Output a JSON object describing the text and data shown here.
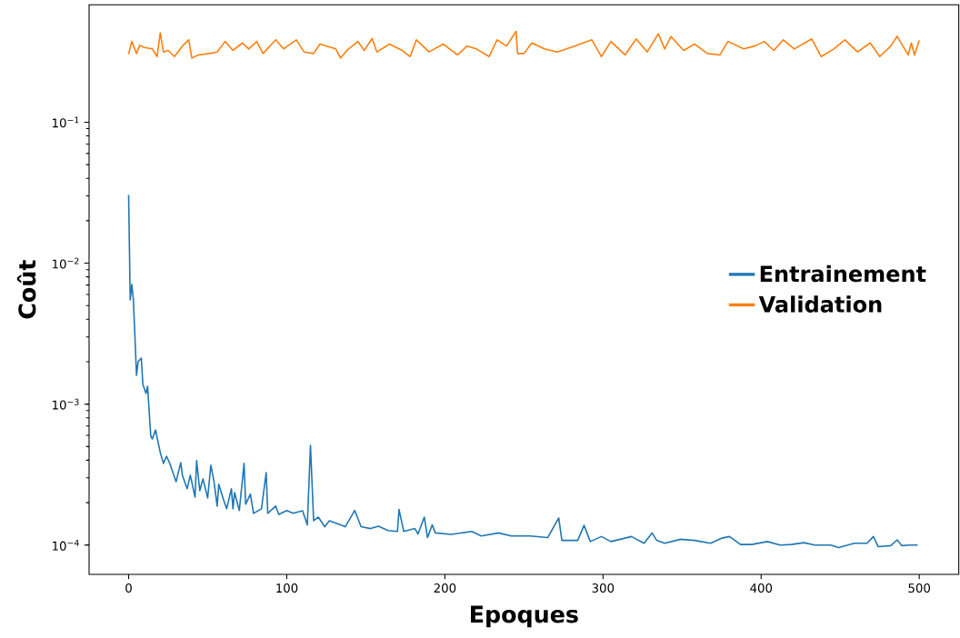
{
  "chart_data": {
    "type": "line",
    "xlabel": "Epoques",
    "ylabel": "Coût",
    "log": "y",
    "legend": "right",
    "grid": false,
    "xlim": [
      -25,
      525
    ],
    "ylim": [
      6.2e-05,
      0.68
    ],
    "xticks": [
      0,
      100,
      200,
      300,
      400,
      500
    ],
    "yticks": [
      {
        "value": 0.0001,
        "label": "10$^{−4}$"
      },
      {
        "value": 0.001,
        "label": "10$^{−3}$"
      },
      {
        "value": 0.01,
        "label": "10$^{−2}$"
      },
      {
        "value": 0.1,
        "label": "10$^{−1}$"
      }
    ],
    "series": [
      {
        "name": "Entrainement",
        "color": "#1f77b4",
        "x": [
          0,
          1,
          2,
          3,
          5,
          6,
          8,
          9,
          11,
          12,
          14,
          15,
          17,
          20,
          22,
          24,
          26,
          28,
          30,
          33,
          34,
          37,
          39,
          42,
          43,
          45,
          47,
          50,
          52,
          54,
          56,
          57,
          60,
          62,
          65,
          66,
          67,
          70,
          73,
          74,
          77,
          79,
          84,
          87,
          88,
          93,
          95,
          100,
          104,
          110,
          113,
          115,
          117,
          120,
          124,
          127,
          134,
          137,
          143,
          147,
          153,
          158,
          164,
          170,
          171,
          174,
          181,
          183,
          187,
          189,
          192,
          194,
          204,
          217,
          223,
          234,
          242,
          254,
          265,
          272,
          274,
          284,
          288,
          292,
          299,
          305,
          318,
          326,
          331,
          334,
          339,
          349,
          358,
          368,
          375,
          380,
          387,
          394,
          404,
          412,
          419,
          427,
          434,
          444,
          449,
          459,
          467,
          471,
          474,
          482,
          486,
          489,
          494,
          499
        ],
        "values": [
          0.0305,
          0.00548,
          0.00705,
          0.0055,
          0.0016,
          0.002,
          0.00212,
          0.00138,
          0.00119,
          0.00134,
          0.000593,
          0.000566,
          0.000657,
          0.000454,
          0.00038,
          0.000427,
          0.00038,
          0.000327,
          0.000282,
          0.000385,
          0.000313,
          0.000251,
          0.000313,
          0.000219,
          0.000397,
          0.000243,
          0.000295,
          0.000216,
          0.000369,
          0.000282,
          0.000189,
          0.00027,
          0.00021,
          0.000181,
          0.000251,
          0.000181,
          0.000236,
          0.000176,
          0.00038,
          0.000195,
          0.00023,
          0.000168,
          0.000181,
          0.000327,
          0.000168,
          0.000189,
          0.000165,
          0.000176,
          0.000168,
          0.000175,
          0.000139,
          0.000509,
          0.000149,
          0.000158,
          0.000135,
          0.000149,
          0.000139,
          0.000135,
          0.000176,
          0.000135,
          0.000131,
          0.000136,
          0.000127,
          0.000125,
          0.000179,
          0.000125,
          0.000131,
          0.00012,
          0.000158,
          0.000113,
          0.000139,
          0.000122,
          0.000119,
          0.000125,
          0.000116,
          0.000122,
          0.000116,
          0.000116,
          0.000113,
          0.000156,
          0.000108,
          0.000108,
          0.000138,
          0.000106,
          0.000115,
          0.000106,
          0.000115,
          0.000103,
          0.000122,
          0.000108,
          0.000103,
          0.00011,
          0.000108,
          0.000103,
          0.000112,
          0.000115,
          0.000101,
          0.000101,
          0.000106,
          0.0001,
          0.000101,
          0.000104,
          0.0001,
          0.0001,
          9.61e-05,
          0.000103,
          0.000103,
          0.000115,
          9.76e-05,
          9.91e-05,
          0.000109,
          9.91e-05,
          0.0001,
          0.0001
        ]
      },
      {
        "name": "Validation",
        "color": "#ff7f0e",
        "x": [
          0,
          2,
          5,
          7,
          10,
          15,
          18,
          20,
          22,
          25,
          29,
          34,
          38,
          40,
          44,
          51,
          56,
          61,
          66,
          72,
          76,
          81,
          85,
          93,
          98,
          106,
          111,
          117,
          121,
          131,
          134,
          138,
          145,
          149,
          154,
          157,
          165,
          173,
          178,
          182,
          190,
          199,
          208,
          214,
          220,
          228,
          233,
          239,
          245,
          246,
          250,
          255,
          263,
          271,
          282,
          293,
          299,
          305,
          314,
          321,
          328,
          335,
          339,
          343,
          351,
          358,
          366,
          374,
          379,
          389,
          396,
          402,
          408,
          414,
          421,
          432,
          438,
          446,
          453,
          461,
          469,
          475,
          482,
          486,
          493,
          495,
          497,
          500
        ],
        "values": [
          0.303,
          0.374,
          0.307,
          0.351,
          0.339,
          0.331,
          0.292,
          0.43,
          0.315,
          0.323,
          0.292,
          0.347,
          0.384,
          0.285,
          0.3,
          0.307,
          0.315,
          0.374,
          0.323,
          0.365,
          0.331,
          0.374,
          0.307,
          0.384,
          0.331,
          0.384,
          0.315,
          0.307,
          0.358,
          0.331,
          0.285,
          0.323,
          0.374,
          0.323,
          0.393,
          0.315,
          0.358,
          0.323,
          0.292,
          0.384,
          0.315,
          0.358,
          0.3,
          0.347,
          0.331,
          0.292,
          0.384,
          0.347,
          0.441,
          0.307,
          0.307,
          0.365,
          0.331,
          0.315,
          0.347,
          0.384,
          0.292,
          0.374,
          0.3,
          0.39,
          0.315,
          0.424,
          0.331,
          0.405,
          0.323,
          0.358,
          0.307,
          0.3,
          0.374,
          0.331,
          0.347,
          0.374,
          0.323,
          0.384,
          0.331,
          0.39,
          0.292,
          0.331,
          0.384,
          0.315,
          0.365,
          0.292,
          0.347,
          0.407,
          0.3,
          0.365,
          0.3,
          0.38
        ]
      }
    ]
  }
}
